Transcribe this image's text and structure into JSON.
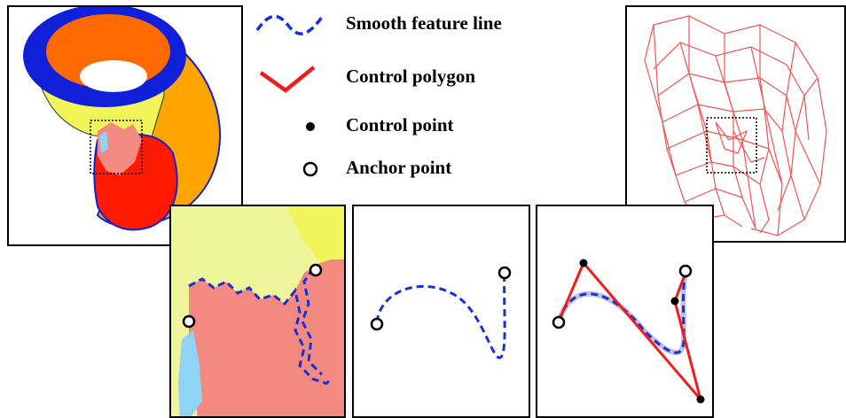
{
  "legend": {
    "items": [
      {
        "key": "smooth_feature_line",
        "label": "Smooth feature line",
        "icon": "dashed-curve-icon",
        "color": "#1a2fd6"
      },
      {
        "key": "control_polygon",
        "label": "Control polygon",
        "icon": "polyline-icon",
        "color": "#ee1c1c"
      },
      {
        "key": "control_point",
        "label": "Control point",
        "icon": "filled-dot-icon",
        "color": "#000000"
      },
      {
        "key": "anchor_point",
        "label": "Anchor point",
        "icon": "hollow-circle-icon",
        "color": "#000000"
      }
    ]
  },
  "colors": {
    "blue_region": "#1020d8",
    "orange_region": "#ff6a00",
    "amber_region": "#ffa500",
    "yellow_region": "#f2f55a",
    "red_region": "#ff1a00",
    "salmon_region": "#f28a82",
    "light_yellow_region": "#eef59a",
    "cyan_region": "#8fd4f5",
    "wireframe": "#ee5555",
    "feature_line": "#1a2fd6",
    "control_polygon": "#ee1c1c"
  }
}
